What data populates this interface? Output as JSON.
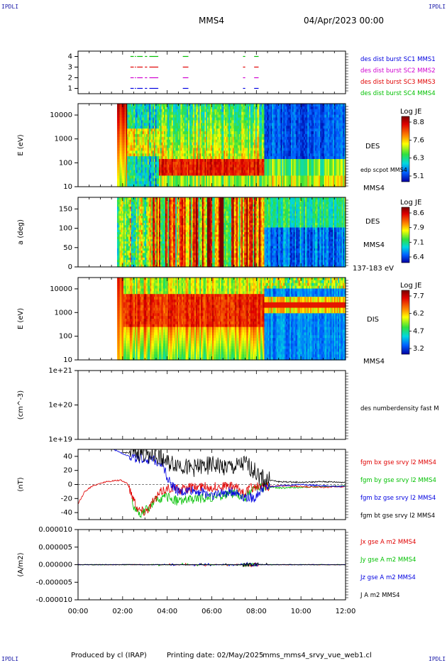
{
  "header": {
    "corner_tl": "IPDLI",
    "corner_tr": "IPDLI",
    "corner_bl": "IPDLI",
    "corner_br": "IPDLI",
    "spacecraft": "MMS4",
    "date": "04/Apr/2023 00:00"
  },
  "footer": {
    "produced": "Produced by cl (IRAP)",
    "printing": "Printing date: 02/May/2025",
    "file": "mms_mms4_srvy_vue_web1.cl"
  },
  "colors": {
    "red": "#e00000",
    "green": "#00c000",
    "blue": "#0000e0",
    "black": "#000000",
    "magenta": "#d000d0"
  },
  "chart_data": [
    {
      "type": "scatter",
      "panel": "burst-availability",
      "yticks": [
        "1",
        "2",
        "3",
        "4"
      ],
      "ylim": [
        0.5,
        4.5
      ],
      "series": [
        {
          "name": "des dist burst SC1 MMS1",
          "color": "#0000e0",
          "level": 1,
          "intervals": [
            [
              2.35,
              2.5
            ],
            [
              2.55,
              2.6
            ],
            [
              2.65,
              2.9
            ],
            [
              3.0,
              3.1
            ],
            [
              3.2,
              3.6
            ],
            [
              4.7,
              4.95
            ],
            [
              7.4,
              7.5
            ],
            [
              7.9,
              8.1
            ]
          ]
        },
        {
          "name": "des dist burst SC2 MMS2",
          "color": "#d000d0",
          "level": 2,
          "intervals": [
            [
              2.35,
              2.5
            ],
            [
              2.55,
              2.6
            ],
            [
              2.65,
              2.9
            ],
            [
              3.0,
              3.1
            ],
            [
              3.2,
              3.6
            ],
            [
              4.7,
              4.95
            ],
            [
              7.4,
              7.5
            ],
            [
              7.9,
              8.1
            ]
          ]
        },
        {
          "name": "des dist burst SC3 MMS3",
          "color": "#e00000",
          "level": 3,
          "intervals": [
            [
              2.35,
              2.5
            ],
            [
              2.55,
              2.6
            ],
            [
              2.65,
              2.9
            ],
            [
              3.0,
              3.1
            ],
            [
              3.2,
              3.6
            ],
            [
              4.7,
              4.95
            ],
            [
              7.4,
              7.5
            ],
            [
              7.9,
              8.1
            ]
          ]
        },
        {
          "name": "des dist burst SC4 MMS4",
          "color": "#00c000",
          "level": 4,
          "intervals": [
            [
              2.35,
              2.5
            ],
            [
              2.55,
              2.6
            ],
            [
              2.65,
              2.9
            ],
            [
              3.0,
              3.1
            ],
            [
              3.2,
              3.6
            ],
            [
              4.7,
              4.95
            ],
            [
              7.4,
              7.5
            ],
            [
              7.9,
              8.1
            ]
          ]
        }
      ]
    },
    {
      "type": "heatmap",
      "panel": "des-energy",
      "ylabel": "E (eV)",
      "yscale": "log",
      "ylim": [
        10,
        30000
      ],
      "yticks": [
        "10",
        "100",
        "1000",
        "10000"
      ],
      "labels": [
        "DES",
        "edp scpot MMS4",
        "MMS4"
      ],
      "colorbar": {
        "title": "Log JE",
        "ticks": [
          "8.8",
          "7.6",
          "6.3",
          "5.1"
        ],
        "range": [
          5.1,
          8.8
        ]
      },
      "data_start": 1.75
    },
    {
      "type": "heatmap",
      "panel": "des-pitch",
      "ylabel": "a (deg)",
      "ylim": [
        0,
        180
      ],
      "yticks": [
        "0",
        "50",
        "100",
        "150"
      ],
      "labels": [
        "DES",
        "MMS4",
        "137-183 eV"
      ],
      "colorbar": {
        "title": "Log JE",
        "ticks": [
          "8.6",
          "7.9",
          "7.1",
          "6.4"
        ],
        "range": [
          6.4,
          8.6
        ]
      },
      "data_start": 1.75
    },
    {
      "type": "heatmap",
      "panel": "dis-energy",
      "ylabel": "E (eV)",
      "yscale": "log",
      "ylim": [
        10,
        30000
      ],
      "yticks": [
        "10",
        "100",
        "1000",
        "10000"
      ],
      "labels": [
        "DIS",
        "MMS4"
      ],
      "colorbar": {
        "title": "Log JE",
        "ticks": [
          "7.7",
          "6.2",
          "4.7",
          "3.2"
        ],
        "range": [
          3.2,
          7.7
        ]
      },
      "data_start": 1.75
    },
    {
      "type": "line",
      "panel": "density",
      "ylabel": "(cm^-3)",
      "yscale": "log",
      "yticks": [
        "1e+19",
        "1e+20",
        "1e+21"
      ],
      "series": [
        {
          "name": "des numberdensity fast M",
          "color": "#000000"
        }
      ]
    },
    {
      "type": "line",
      "panel": "fgm",
      "ylabel": "(nT)",
      "ylim": [
        -50,
        50
      ],
      "yticks": [
        "-40",
        "-20",
        "0",
        "20",
        "40"
      ],
      "series": [
        {
          "name": "fgm bx gse srvy l2 MMS4",
          "color": "#e00000",
          "points": [
            [
              0,
              -28
            ],
            [
              0.3,
              -10
            ],
            [
              0.6,
              -3
            ],
            [
              1.0,
              2
            ],
            [
              1.5,
              5
            ],
            [
              1.9,
              6
            ],
            [
              2.2,
              2
            ],
            [
              2.5,
              -20
            ],
            [
              2.7,
              -35
            ],
            [
              3.0,
              -38
            ],
            [
              3.3,
              -28
            ],
            [
              3.6,
              -15
            ],
            [
              3.8,
              -8
            ],
            [
              4.2,
              -4
            ],
            [
              4.6,
              -8
            ],
            [
              5.0,
              -5
            ],
            [
              5.5,
              -3
            ],
            [
              6.0,
              -4
            ],
            [
              6.5,
              -2
            ],
            [
              7.0,
              -3
            ],
            [
              7.5,
              -12
            ],
            [
              7.7,
              -5
            ],
            [
              8.0,
              -3
            ],
            [
              9.0,
              -2
            ],
            [
              10.0,
              -3
            ],
            [
              11.0,
              -4
            ],
            [
              12.0,
              -3
            ]
          ]
        },
        {
          "name": "fgm by gse srvy l2 MMS4",
          "color": "#00c000",
          "points": [
            [
              2.4,
              -25
            ],
            [
              2.7,
              -42
            ],
            [
              3.0,
              -38
            ],
            [
              3.3,
              -30
            ],
            [
              3.6,
              -20
            ],
            [
              4.0,
              -18
            ],
            [
              4.5,
              -24
            ],
            [
              5.0,
              -22
            ],
            [
              5.5,
              -20
            ],
            [
              6.0,
              -18
            ],
            [
              6.5,
              -15
            ],
            [
              7.0,
              -12
            ],
            [
              7.5,
              -20
            ],
            [
              7.8,
              -6
            ],
            [
              8.5,
              -3
            ],
            [
              9.0,
              -5
            ],
            [
              10.0,
              -4
            ],
            [
              11.0,
              -3
            ],
            [
              12.0,
              -2
            ]
          ]
        },
        {
          "name": "fgm bz gse srvy l2 MMS4",
          "color": "#0000e0",
          "points": [
            [
              1.6,
              50
            ],
            [
              2.0,
              44
            ],
            [
              2.5,
              38
            ],
            [
              3.0,
              36
            ],
            [
              3.5,
              33
            ],
            [
              3.8,
              30
            ],
            [
              4.0,
              10
            ],
            [
              4.3,
              -5
            ],
            [
              4.6,
              -12
            ],
            [
              5.0,
              -8
            ],
            [
              5.5,
              -10
            ],
            [
              6.0,
              -15
            ],
            [
              6.5,
              -12
            ],
            [
              7.0,
              -10
            ],
            [
              7.5,
              -18
            ],
            [
              7.9,
              -20
            ],
            [
              8.3,
              -5
            ],
            [
              9.0,
              -2
            ],
            [
              10.0,
              0
            ],
            [
              11.0,
              -2
            ],
            [
              12.0,
              -3
            ]
          ]
        },
        {
          "name": "fgm bt gse srvy l2 MMS4",
          "color": "#000000",
          "points": [
            [
              2.0,
              45
            ],
            [
              2.5,
              46
            ],
            [
              3.0,
              44
            ],
            [
              3.5,
              40
            ],
            [
              3.8,
              38
            ],
            [
              4.0,
              30
            ],
            [
              4.5,
              30
            ],
            [
              5.0,
              22
            ],
            [
              5.5,
              25
            ],
            [
              6.0,
              28
            ],
            [
              6.5,
              26
            ],
            [
              7.0,
              24
            ],
            [
              7.5,
              30
            ],
            [
              7.8,
              22
            ],
            [
              8.3,
              8
            ],
            [
              9.0,
              4
            ],
            [
              10.0,
              3
            ],
            [
              11.0,
              4
            ],
            [
              12.0,
              3
            ]
          ]
        }
      ]
    },
    {
      "type": "line",
      "panel": "current",
      "ylabel": "(A/m2)",
      "ylim": [
        -0.0001,
        0.0001
      ],
      "yticks": [
        "-0.000010",
        "-0.000005",
        "0.000000",
        "0.000005",
        "0.000010"
      ],
      "series": [
        {
          "name": "Jx gse A m2 MMS4",
          "color": "#e00000"
        },
        {
          "name": "Jy gse A m2 MMS4",
          "color": "#00c000"
        },
        {
          "name": "Jz gse A m2 MMS4",
          "color": "#0000e0"
        },
        {
          "name": "J A m2 MMS4",
          "color": "#000000"
        }
      ]
    }
  ],
  "xaxis": {
    "ticks": [
      "00:00",
      "02:00",
      "04:00",
      "06:00",
      "08:00",
      "10:00",
      "12:00"
    ],
    "range_hours": [
      0,
      12
    ]
  }
}
